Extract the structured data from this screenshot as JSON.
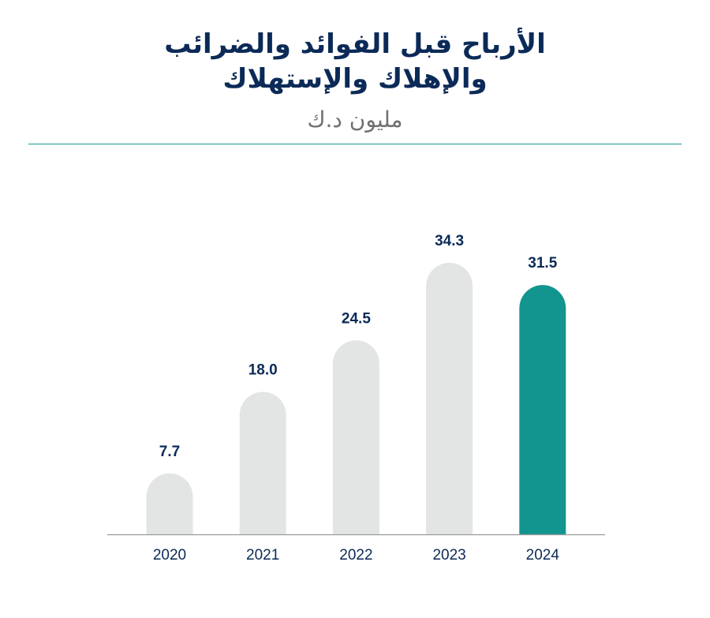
{
  "header": {
    "title_line1": "الأرباح قبل الفوائد والضرائب",
    "title_line2": "والإهلاك والإستهلاك",
    "unit": "مليون د.ك"
  },
  "colors": {
    "bar_default": "#e3e4e4",
    "bar_highlight": "#13958f",
    "text": "#0b2a57",
    "divider": "#13958f",
    "axis": "#9a9a9a"
  },
  "chart_data": {
    "type": "bar",
    "title": "الأرباح قبل الفوائد والضرائب والإهلاك والإستهلاك",
    "subtitle": "مليون د.ك",
    "categories": [
      "2020",
      "2021",
      "2022",
      "2023",
      "2024"
    ],
    "values": [
      7.7,
      18.0,
      24.5,
      34.3,
      31.5
    ],
    "value_labels": [
      "7.7",
      "18.0",
      "24.5",
      "34.3",
      "31.5"
    ],
    "highlight_category": "2024",
    "grid": false,
    "legend": "none"
  }
}
